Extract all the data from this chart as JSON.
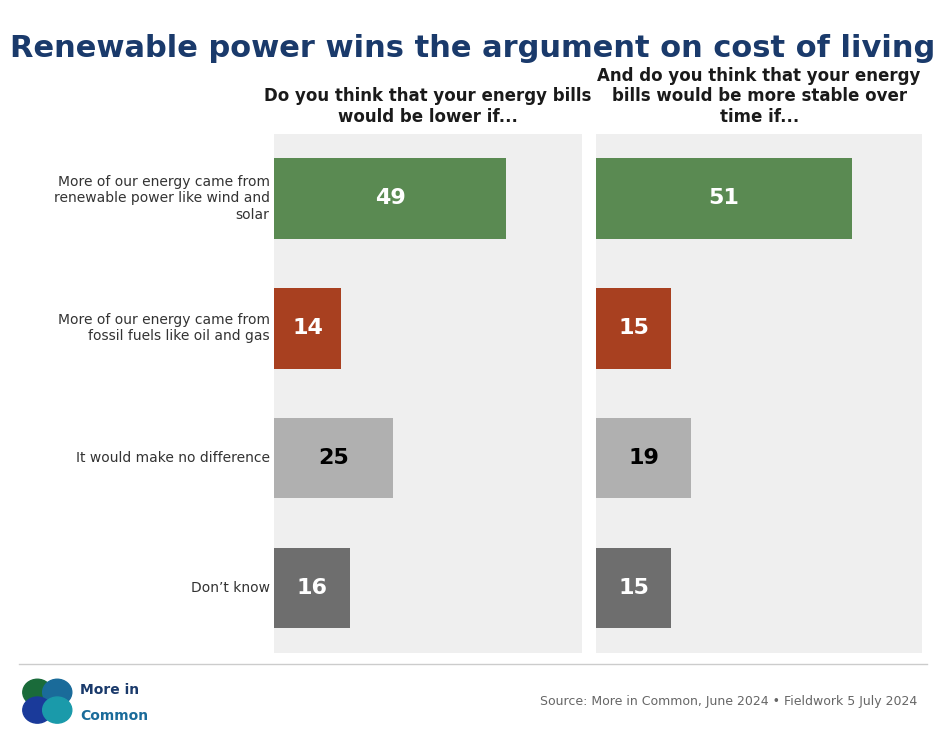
{
  "title": "Renewable power wins the argument on cost of living",
  "title_color": "#1a3a6b",
  "title_fontsize": 22,
  "background_color": "#ffffff",
  "chart_bg_color": "#efefef",
  "chart1_title": "Do you think that your energy bills\nwould be lower if...",
  "chart2_title": "And do you think that your energy\nbills would be more stable over\ntime if...",
  "categories": [
    "More of our energy came from\nrenewable power like wind and\nsolar",
    "More of our energy came from\nfossil fuels like oil and gas",
    "It would make no difference",
    "Don’t know"
  ],
  "values1": [
    49,
    14,
    25,
    16
  ],
  "values2": [
    51,
    15,
    19,
    15
  ],
  "bar_colors": [
    "#5a8a52",
    "#a84020",
    "#b0b0b0",
    "#6e6e6e"
  ],
  "bar_text_colors": [
    "white",
    "white",
    "black",
    "white"
  ],
  "source_text": "Source: More in Common, June 2024 • Fieldwork 5 July 2024",
  "bar_height": 0.62,
  "xlim": [
    0,
    65
  ],
  "label_fontsize": 10,
  "value_fontsize": 16,
  "chart_title_fontsize": 12
}
